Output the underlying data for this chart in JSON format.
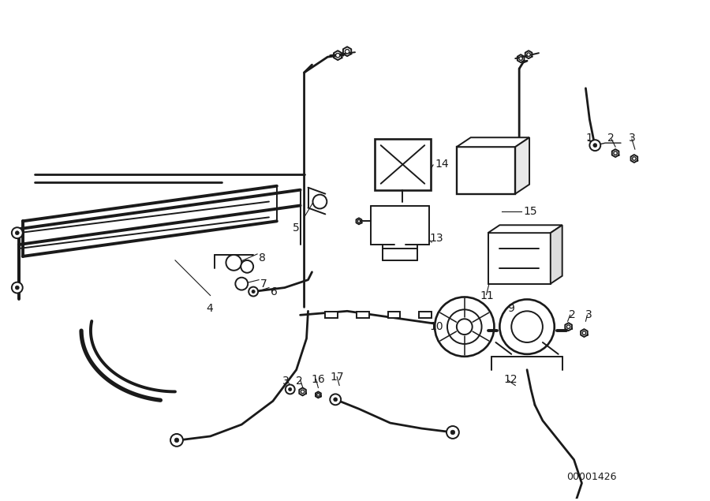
{
  "background_color": "#ffffff",
  "line_color": "#1a1a1a",
  "diagram_label": "00001426",
  "lw": 1.4,
  "lw_cable": 2.0,
  "lw_thick": 2.8
}
